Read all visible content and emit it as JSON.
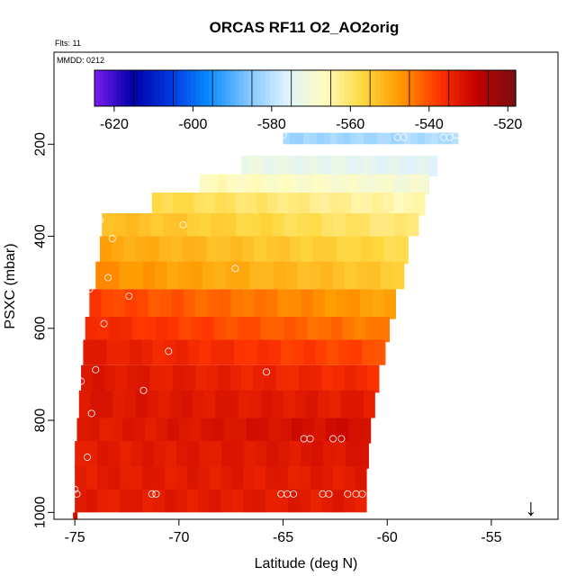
{
  "chart_data": {
    "type": "heatmap",
    "title": "ORCAS RF11 O2_AO2orig",
    "flights_note": "Flts: 11",
    "date_note": "MMDD: 0212",
    "xlabel": "Latitude (deg N)",
    "ylabel": "PSXC (mbar)",
    "xlim": [
      -76.0,
      -51.8
    ],
    "ylim": [
      1015,
      0
    ],
    "x_ticks": [
      -75,
      -70,
      -65,
      -60,
      -55
    ],
    "y_ticks": [
      200,
      400,
      600,
      800,
      1000
    ],
    "colorbar": {
      "range": [
        -625,
        -518
      ],
      "ticks": [
        -620,
        -600,
        -580,
        -560,
        -540,
        -520
      ],
      "segment_boundaries": [
        -625,
        -615,
        -605,
        -595,
        -585,
        -575,
        -565,
        -555,
        -545,
        -535,
        -525,
        -518
      ],
      "colors": [
        "#7a1cf0",
        "#0000a8",
        "#0038e0",
        "#0a8cff",
        "#7fc6ff",
        "#dcf2ff",
        "#fffcc0",
        "#ffd840",
        "#ff9900",
        "#ff3300",
        "#c00000",
        "#7a1010"
      ]
    },
    "layers": [
      {
        "p_top": 175,
        "p_bot": 200,
        "lat_min": -65.0,
        "lat_max": -56.6,
        "v_start": -583,
        "v_end": -581
      },
      {
        "p_top": 225,
        "p_bot": 270,
        "lat_min": -67.0,
        "lat_max": -57.6,
        "v_start": -572,
        "v_end": -575
      },
      {
        "p_top": 265,
        "p_bot": 310,
        "lat_min": -69.0,
        "lat_max": -58.0,
        "v_start": -566,
        "v_end": -570
      },
      {
        "p_top": 305,
        "p_bot": 355,
        "lat_min": -71.3,
        "lat_max": -58.2,
        "v_start": -557,
        "v_end": -566
      },
      {
        "p_top": 350,
        "p_bot": 400,
        "lat_min": -73.7,
        "lat_max": -58.5,
        "v_start": -552,
        "v_end": -562
      },
      {
        "p_top": 400,
        "p_bot": 460,
        "lat_min": -73.8,
        "lat_max": -59.0,
        "v_start": -549,
        "v_end": -558
      },
      {
        "p_top": 455,
        "p_bot": 515,
        "lat_min": -74.0,
        "lat_max": -59.2,
        "v_start": -546,
        "v_end": -555
      },
      {
        "p_top": 515,
        "p_bot": 580,
        "lat_min": -74.3,
        "lat_max": -59.6,
        "v_start": -538,
        "v_end": -549
      },
      {
        "p_top": 575,
        "p_bot": 630,
        "lat_min": -74.5,
        "lat_max": -59.9,
        "v_start": -535,
        "v_end": -545
      },
      {
        "p_top": 625,
        "p_bot": 680,
        "lat_min": -74.6,
        "lat_max": -60.1,
        "v_start": -533,
        "v_end": -540
      },
      {
        "p_top": 680,
        "p_bot": 740,
        "lat_min": -74.7,
        "lat_max": -60.4,
        "v_start": -532,
        "v_end": -536
      },
      {
        "p_top": 735,
        "p_bot": 795,
        "lat_min": -74.8,
        "lat_max": -60.6,
        "v_start": -532,
        "v_end": -533
      },
      {
        "p_top": 795,
        "p_bot": 850,
        "lat_min": -74.9,
        "lat_max": -60.8,
        "v_start": -533,
        "v_end": -530
      },
      {
        "p_top": 845,
        "p_bot": 905,
        "lat_min": -75.0,
        "lat_max": -60.9,
        "v_start": -533,
        "v_end": -532
      },
      {
        "p_top": 900,
        "p_bot": 955,
        "lat_min": -75.0,
        "lat_max": -61.0,
        "v_start": -533,
        "v_end": -533
      },
      {
        "p_top": 950,
        "p_bot": 1000,
        "lat_min": -75.0,
        "lat_max": -61.0,
        "v_start": -533,
        "v_end": -533
      }
    ],
    "obs_points": [
      {
        "lat": -65.0,
        "p": 180
      },
      {
        "lat": -59.5,
        "p": 185
      },
      {
        "lat": -59.2,
        "p": 185
      },
      {
        "lat": -57.3,
        "p": 185
      },
      {
        "lat": -57.0,
        "p": 185
      },
      {
        "lat": -56.7,
        "p": 180
      },
      {
        "lat": -69.8,
        "p": 375
      },
      {
        "lat": -73.8,
        "p": 365
      },
      {
        "lat": -73.2,
        "p": 405
      },
      {
        "lat": -67.3,
        "p": 470
      },
      {
        "lat": -73.4,
        "p": 490
      },
      {
        "lat": -74.3,
        "p": 515
      },
      {
        "lat": -72.4,
        "p": 530
      },
      {
        "lat": -73.6,
        "p": 590
      },
      {
        "lat": -70.5,
        "p": 650
      },
      {
        "lat": -74.0,
        "p": 690
      },
      {
        "lat": -65.8,
        "p": 695
      },
      {
        "lat": -74.7,
        "p": 715
      },
      {
        "lat": -71.7,
        "p": 735
      },
      {
        "lat": -74.2,
        "p": 785
      },
      {
        "lat": -64.0,
        "p": 840
      },
      {
        "lat": -63.7,
        "p": 840
      },
      {
        "lat": -62.6,
        "p": 840
      },
      {
        "lat": -62.2,
        "p": 840
      },
      {
        "lat": -74.4,
        "p": 880
      },
      {
        "lat": -75.0,
        "p": 950
      },
      {
        "lat": -74.9,
        "p": 960
      },
      {
        "lat": -71.3,
        "p": 960
      },
      {
        "lat": -71.1,
        "p": 960
      },
      {
        "lat": -65.1,
        "p": 960
      },
      {
        "lat": -64.8,
        "p": 960
      },
      {
        "lat": -64.5,
        "p": 960
      },
      {
        "lat": -63.1,
        "p": 960
      },
      {
        "lat": -62.8,
        "p": 960
      },
      {
        "lat": -61.9,
        "p": 960
      },
      {
        "lat": -61.5,
        "p": 960
      },
      {
        "lat": -61.2,
        "p": 960
      }
    ],
    "marker": {
      "symbol": "↓",
      "lat": -53.1,
      "p": 1000
    }
  }
}
